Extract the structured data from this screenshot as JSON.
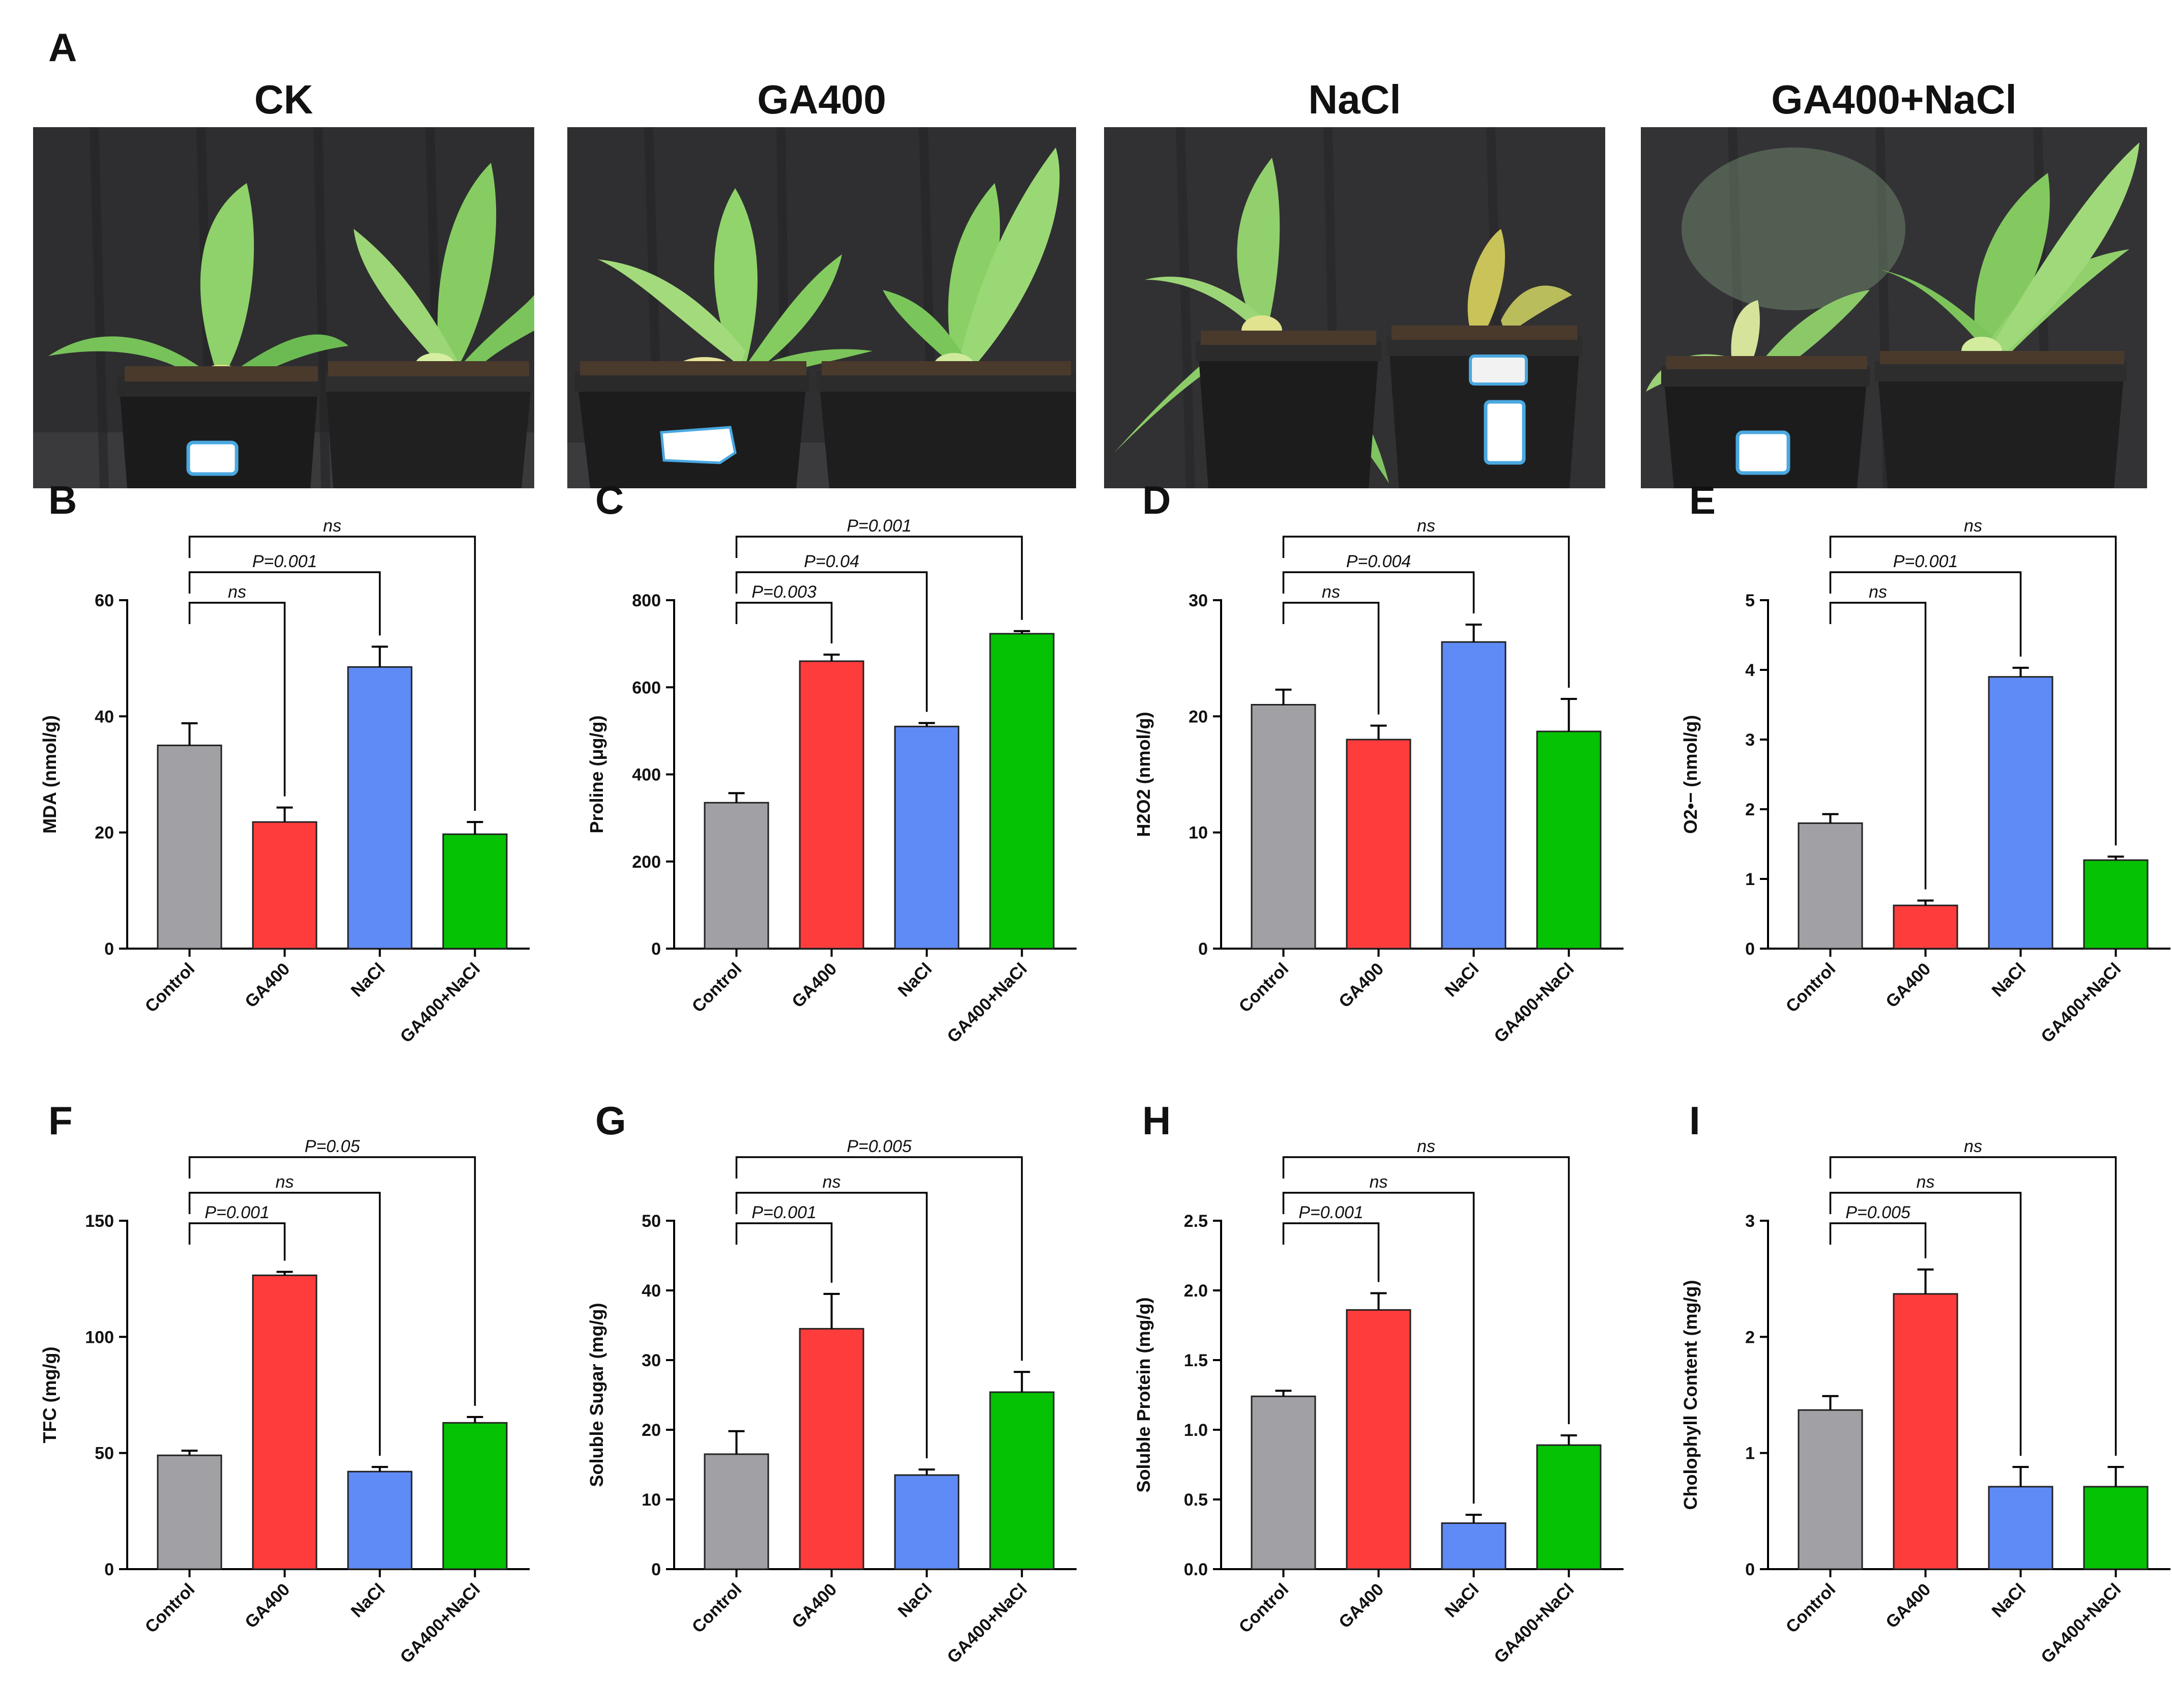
{
  "panel_a": {
    "letter": "A",
    "photos": [
      {
        "title": "CK"
      },
      {
        "title": "GA400"
      },
      {
        "title": "NaCl"
      },
      {
        "title": "GA400+NaCl"
      }
    ]
  },
  "colors": {
    "Control": "#a0a0a5",
    "GA400": "#fe3c3c",
    "NaCl": "#5f8bf6",
    "GA400+NaCl": "#05c205"
  },
  "chart_data": [
    {
      "panel": "B",
      "type": "bar",
      "ylabel": "MDA (nmol/g)",
      "categories": [
        "Control",
        "GA400",
        "NaCl",
        "GA400+NaCl"
      ],
      "values": [
        35,
        21.8,
        48.5,
        19.7
      ],
      "errors": [
        3.8,
        2.5,
        3.5,
        2.1
      ],
      "ylim": [
        0,
        60
      ],
      "yticks": [
        "0",
        "20",
        "40",
        "60"
      ],
      "comparisons": [
        {
          "to": "GA400",
          "label": "ns"
        },
        {
          "to": "NaCl",
          "label": "P=0.001"
        },
        {
          "to": "GA400+NaCl",
          "label": "ns"
        }
      ]
    },
    {
      "panel": "C",
      "type": "bar",
      "ylabel": "Proline (μg/g)",
      "categories": [
        "Control",
        "GA400",
        "NaCl",
        "GA400+NaCl"
      ],
      "values": [
        335,
        660,
        510,
        723
      ],
      "errors": [
        22,
        15,
        8,
        6
      ],
      "ylim": [
        0,
        800
      ],
      "yticks": [
        "0",
        "200",
        "400",
        "600",
        "800"
      ],
      "comparisons": [
        {
          "to": "GA400",
          "label": "P=0.003"
        },
        {
          "to": "NaCl",
          "label": "P=0.04"
        },
        {
          "to": "GA400+NaCl",
          "label": "P=0.001"
        }
      ]
    },
    {
      "panel": "D",
      "type": "bar",
      "ylabel": "H2O2 (nmol/g)",
      "categories": [
        "Control",
        "GA400",
        "NaCl",
        "GA400+NaCl"
      ],
      "values": [
        21,
        18,
        26.4,
        18.7
      ],
      "errors": [
        1.3,
        1.2,
        1.5,
        2.8
      ],
      "ylim": [
        0,
        30
      ],
      "yticks": [
        "0",
        "10",
        "20",
        "30"
      ],
      "comparisons": [
        {
          "to": "GA400",
          "label": "ns"
        },
        {
          "to": "NaCl",
          "label": "P=0.004"
        },
        {
          "to": "GA400+NaCl",
          "label": "ns"
        }
      ]
    },
    {
      "panel": "E",
      "type": "bar",
      "ylabel": "O2•− (nmol/g)",
      "categories": [
        "Control",
        "GA400",
        "NaCl",
        "GA400+NaCl"
      ],
      "values": [
        1.8,
        0.62,
        3.9,
        1.27
      ],
      "errors": [
        0.13,
        0.07,
        0.13,
        0.05
      ],
      "ylim": [
        0,
        5
      ],
      "yticks": [
        "0",
        "1",
        "2",
        "3",
        "4",
        "5"
      ],
      "comparisons": [
        {
          "to": "GA400",
          "label": "ns"
        },
        {
          "to": "NaCl",
          "label": "P=0.001"
        },
        {
          "to": "GA400+NaCl",
          "label": "ns"
        }
      ]
    },
    {
      "panel": "F",
      "type": "bar",
      "ylabel": "TFC (mg/g)",
      "categories": [
        "Control",
        "GA400",
        "NaCl",
        "GA400+NaCl"
      ],
      "values": [
        49,
        126.5,
        42,
        63
      ],
      "errors": [
        2,
        1.5,
        2,
        2.5
      ],
      "ylim": [
        0,
        150
      ],
      "yticks": [
        "0",
        "50",
        "100",
        "150"
      ],
      "comparisons": [
        {
          "to": "GA400",
          "label": "P=0.001"
        },
        {
          "to": "NaCl",
          "label": "ns"
        },
        {
          "to": "GA400+NaCl",
          "label": "P=0.05"
        }
      ]
    },
    {
      "panel": "G",
      "type": "bar",
      "ylabel": "Soluble Sugar (mg/g)",
      "categories": [
        "Control",
        "GA400",
        "NaCl",
        "GA400+NaCl"
      ],
      "values": [
        16.5,
        34.5,
        13.5,
        25.4
      ],
      "errors": [
        3.3,
        5,
        0.8,
        2.9
      ],
      "ylim": [
        0,
        50
      ],
      "yticks": [
        "0",
        "10",
        "20",
        "30",
        "40",
        "50"
      ],
      "comparisons": [
        {
          "to": "GA400",
          "label": "P=0.001"
        },
        {
          "to": "NaCl",
          "label": "ns"
        },
        {
          "to": "GA400+NaCl",
          "label": "P=0.005"
        }
      ]
    },
    {
      "panel": "H",
      "type": "bar",
      "ylabel": "Soluble Protein (mg/g)",
      "categories": [
        "Control",
        "GA400",
        "NaCl",
        "GA400+NaCl"
      ],
      "values": [
        1.24,
        1.86,
        0.33,
        0.89
      ],
      "errors": [
        0.04,
        0.12,
        0.06,
        0.07
      ],
      "ylim": [
        0,
        2.5
      ],
      "yticks": [
        "0.0",
        "0.5",
        "1.0",
        "1.5",
        "2.0",
        "2.5"
      ],
      "comparisons": [
        {
          "to": "GA400",
          "label": "P=0.001"
        },
        {
          "to": "NaCl",
          "label": "ns"
        },
        {
          "to": "GA400+NaCl",
          "label": "ns"
        }
      ]
    },
    {
      "panel": "I",
      "type": "bar",
      "ylabel": "Cholophyll Content (mg/g)",
      "categories": [
        "Control",
        "GA400",
        "NaCl",
        "GA400+NaCl"
      ],
      "values": [
        1.37,
        2.37,
        0.71,
        0.71
      ],
      "errors": [
        0.12,
        0.21,
        0.17,
        0.17
      ],
      "ylim": [
        0,
        3
      ],
      "yticks": [
        "0",
        "1",
        "2",
        "3"
      ],
      "comparisons": [
        {
          "to": "GA400",
          "label": "P=0.005"
        },
        {
          "to": "NaCl",
          "label": "ns"
        },
        {
          "to": "GA400+NaCl",
          "label": "ns"
        }
      ]
    }
  ]
}
